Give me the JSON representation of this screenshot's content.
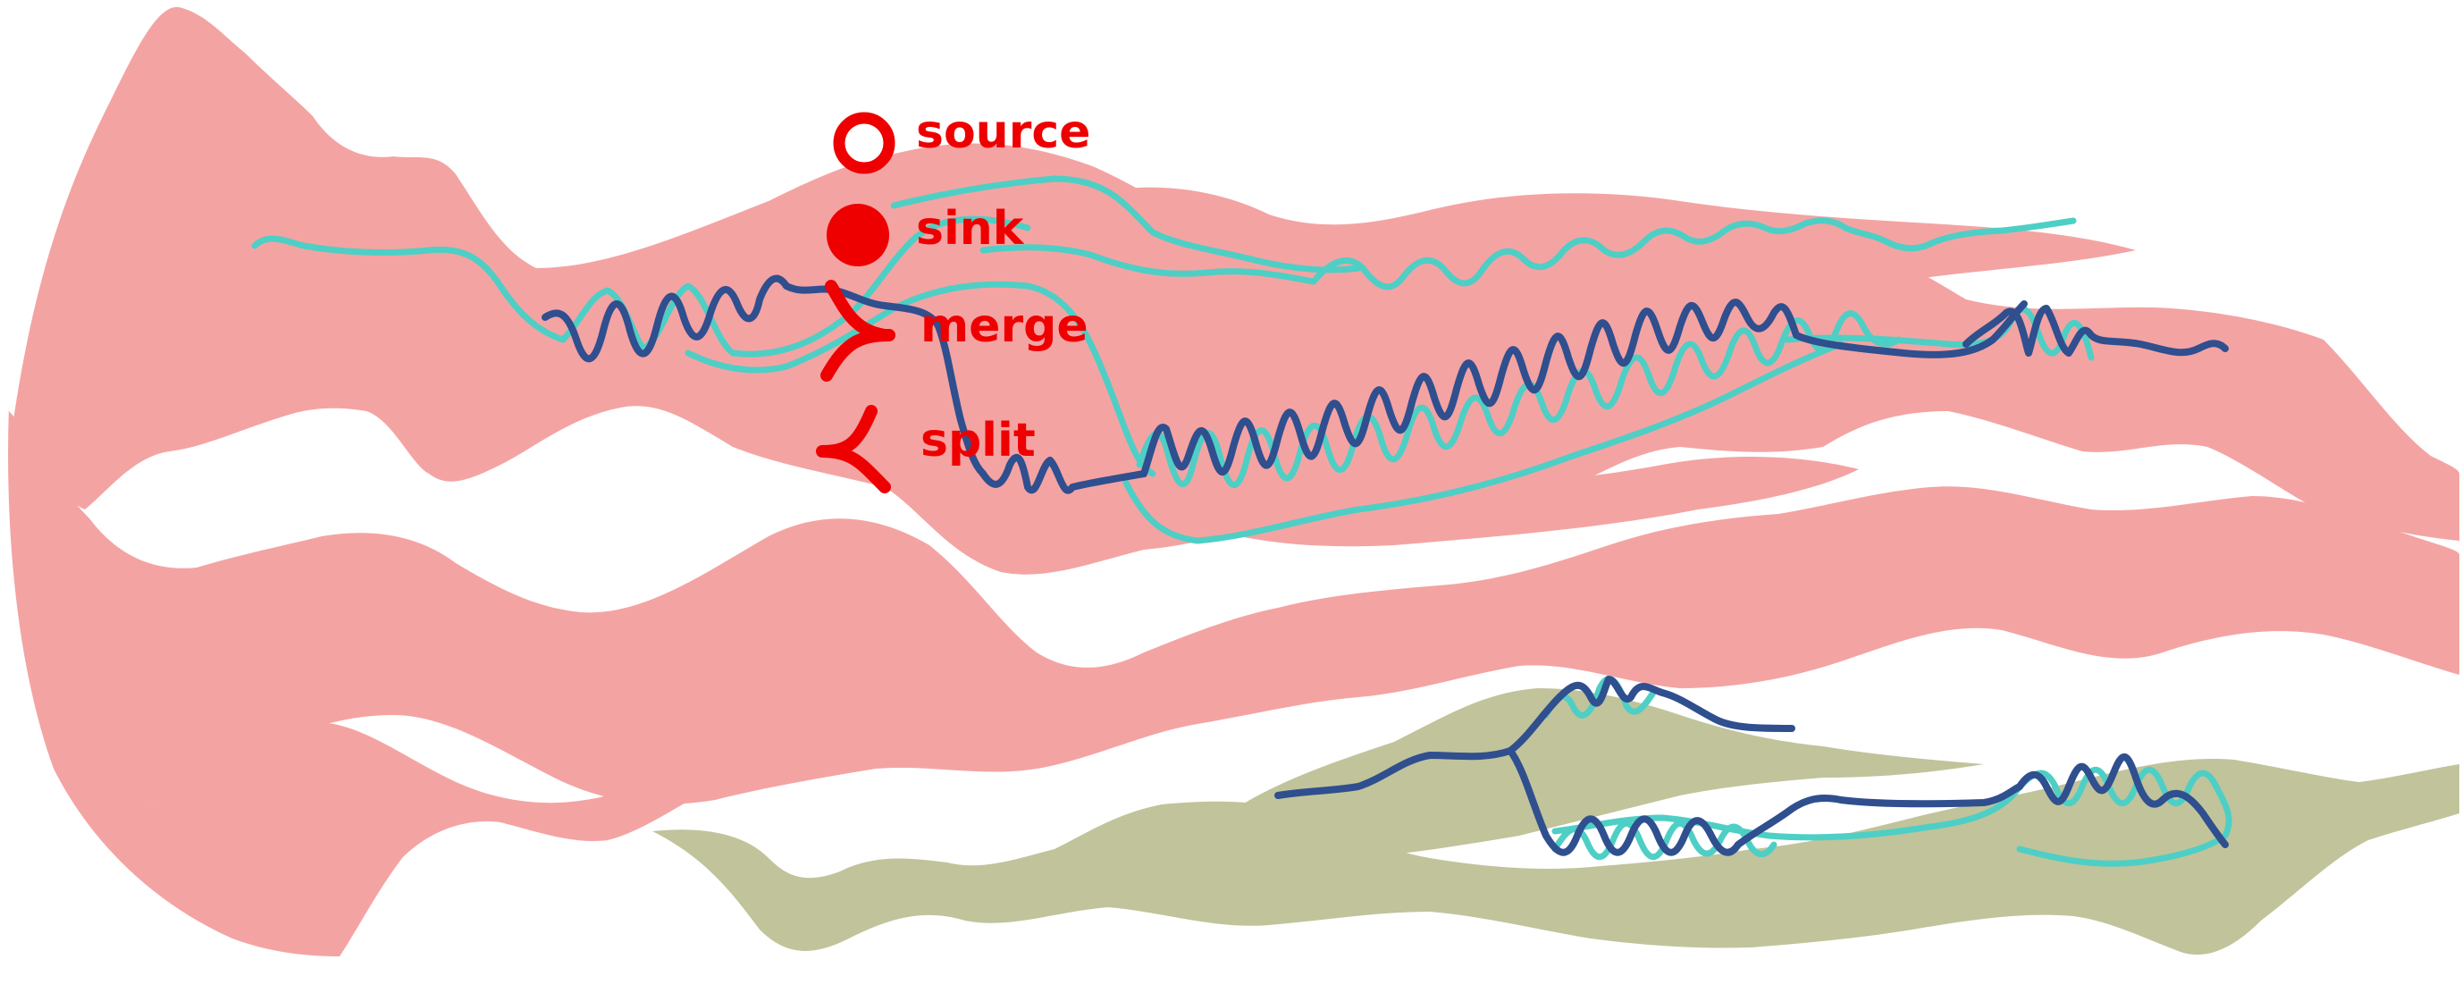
{
  "colors": {
    "band_primary": "#f4a3a3",
    "band_secondary": "#c1c39b",
    "line_cyan": "#4ecfc5",
    "line_navy": "#2f4f8f",
    "legend_red": "#ee0000"
  },
  "legend": {
    "source_label": "source",
    "sink_label": "sink",
    "merge_label": "merge",
    "split_label": "split",
    "source_icon": "hollow-circle",
    "sink_icon": "filled-circle",
    "merge_icon": "merge-bracket",
    "split_icon": "split-bracket"
  }
}
